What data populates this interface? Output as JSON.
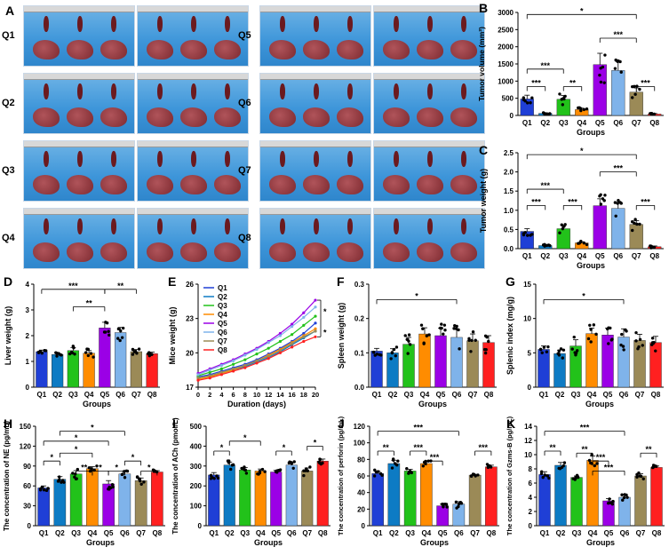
{
  "panel_a": {
    "letter": "A",
    "rows_left": [
      "Q1",
      "Q2",
      "Q3",
      "Q4"
    ],
    "rows_right": [
      "Q5",
      "Q6",
      "Q7",
      "Q8"
    ]
  },
  "colors": {
    "Q1": "#1f3fd6",
    "Q2": "#0d7bc4",
    "Q3": "#22c21a",
    "Q4": "#ff8c00",
    "Q5": "#9b00e6",
    "Q6": "#7fb3ea",
    "Q7": "#9b8a57",
    "Q8": "#ff2020"
  },
  "chart_data": [
    {
      "id": "B",
      "type": "bar",
      "title": "B",
      "categories": [
        "Q1",
        "Q2",
        "Q3",
        "Q4",
        "Q5",
        "Q6",
        "Q7",
        "Q8"
      ],
      "values": [
        480,
        60,
        470,
        170,
        1480,
        1310,
        680,
        40
      ],
      "errors": [
        110,
        20,
        110,
        40,
        330,
        260,
        120,
        15
      ],
      "ylabel": "Tumor volume (mm³)",
      "xlabel": "Groups",
      "ylim": [
        0,
        3000
      ],
      "yticks": [
        0,
        500,
        1000,
        1500,
        2000,
        2500,
        3000
      ],
      "annotations": [
        "*",
        "***",
        "***",
        "***",
        "**",
        "***"
      ]
    },
    {
      "id": "C",
      "type": "bar",
      "title": "C",
      "categories": [
        "Q1",
        "Q2",
        "Q3",
        "Q4",
        "Q5",
        "Q6",
        "Q7",
        "Q8"
      ],
      "values": [
        0.45,
        0.08,
        0.52,
        0.15,
        1.12,
        1.05,
        0.63,
        0.05
      ],
      "errors": [
        0.07,
        0.02,
        0.08,
        0.03,
        0.18,
        0.15,
        0.1,
        0.02
      ],
      "ylabel": "Tumor weight (g)",
      "xlabel": "Groups",
      "ylim": [
        0,
        2.5
      ],
      "yticks": [
        0.0,
        0.5,
        1.0,
        1.5,
        2.0,
        2.5
      ],
      "annotations": [
        "*",
        "***",
        "***",
        "***",
        "***",
        "***"
      ]
    },
    {
      "id": "D",
      "type": "bar",
      "title": "D",
      "categories": [
        "Q1",
        "Q2",
        "Q3",
        "Q4",
        "Q5",
        "Q6",
        "Q7",
        "Q8"
      ],
      "values": [
        1.38,
        1.27,
        1.42,
        1.32,
        2.3,
        2.12,
        1.38,
        1.3
      ],
      "errors": [
        0.06,
        0.05,
        0.12,
        0.1,
        0.22,
        0.2,
        0.08,
        0.06
      ],
      "ylabel": "Liver weight (g)",
      "xlabel": "Groups",
      "ylim": [
        0,
        4
      ],
      "yticks": [
        0,
        1,
        2,
        3,
        4
      ],
      "annotations": [
        "***",
        "**",
        "**"
      ]
    },
    {
      "id": "E",
      "type": "line",
      "title": "E",
      "x": [
        0,
        2,
        4,
        6,
        8,
        10,
        12,
        14,
        16,
        18,
        20
      ],
      "series": [
        {
          "name": "Q1",
          "values": [
            17.9,
            18.1,
            18.4,
            18.7,
            19.0,
            19.4,
            19.9,
            20.4,
            21.0,
            21.7,
            22.6
          ]
        },
        {
          "name": "Q2",
          "values": [
            17.8,
            18.0,
            18.2,
            18.5,
            18.8,
            19.2,
            19.6,
            20.1,
            20.7,
            21.3,
            21.9
          ]
        },
        {
          "name": "Q3",
          "values": [
            18.0,
            18.3,
            18.6,
            19.0,
            19.4,
            19.9,
            20.4,
            21.0,
            21.6,
            22.4,
            23.2
          ]
        },
        {
          "name": "Q4",
          "values": [
            17.7,
            17.9,
            18.2,
            18.5,
            18.9,
            19.3,
            19.8,
            20.3,
            20.9,
            21.5,
            22.1
          ]
        },
        {
          "name": "Q5",
          "values": [
            18.2,
            18.6,
            19.0,
            19.4,
            19.9,
            20.4,
            21.0,
            21.7,
            22.5,
            23.5,
            24.6
          ]
        },
        {
          "name": "Q6",
          "values": [
            18.1,
            18.5,
            18.9,
            19.3,
            19.8,
            20.3,
            20.9,
            21.5,
            22.3,
            23.1,
            24.0
          ]
        },
        {
          "name": "Q7",
          "values": [
            17.8,
            18.0,
            18.3,
            18.6,
            18.9,
            19.3,
            19.7,
            20.2,
            20.8,
            21.4,
            21.9
          ]
        },
        {
          "name": "Q8",
          "values": [
            17.6,
            17.8,
            18.1,
            18.4,
            18.7,
            19.1,
            19.5,
            20.0,
            20.5,
            21.0,
            21.4
          ]
        }
      ],
      "ylabel": "Mice weight (g)",
      "xlabel": "Duration (days)",
      "ylim": [
        17,
        26
      ],
      "yticks": [
        17,
        20,
        23,
        26
      ],
      "xticks": [
        0,
        2,
        4,
        6,
        8,
        10,
        12,
        14,
        16,
        18,
        20
      ],
      "annotations": [
        "*",
        "*"
      ]
    },
    {
      "id": "F",
      "type": "bar",
      "title": "F",
      "categories": [
        "Q1",
        "Q2",
        "Q3",
        "Q4",
        "Q5",
        "Q6",
        "Q7",
        "Q8"
      ],
      "values": [
        0.105,
        0.1,
        0.125,
        0.155,
        0.15,
        0.145,
        0.135,
        0.13
      ],
      "errors": [
        0.008,
        0.012,
        0.02,
        0.018,
        0.022,
        0.025,
        0.02,
        0.02
      ],
      "ylabel": "Spleen weight (g)",
      "xlabel": "Groups",
      "ylim": [
        0,
        0.3
      ],
      "yticks": [
        0.0,
        0.1,
        0.2,
        0.3
      ],
      "annotations": [
        "*"
      ]
    },
    {
      "id": "G",
      "type": "bar",
      "title": "G",
      "categories": [
        "Q1",
        "Q2",
        "Q3",
        "Q4",
        "Q5",
        "Q6",
        "Q7",
        "Q8"
      ],
      "values": [
        5.5,
        4.9,
        6.0,
        7.8,
        7.6,
        7.3,
        6.8,
        6.5
      ],
      "errors": [
        0.5,
        0.5,
        0.9,
        0.8,
        1.0,
        1.2,
        0.9,
        0.9
      ],
      "ylabel": "Splenic index (mg/g)",
      "xlabel": "Groups",
      "ylim": [
        0,
        15
      ],
      "yticks": [
        0,
        5,
        10,
        15
      ],
      "annotations": [
        "*"
      ]
    },
    {
      "id": "H",
      "type": "bar",
      "title": "H",
      "categories": [
        "Q1",
        "Q2",
        "Q3",
        "Q4",
        "Q5",
        "Q6",
        "Q7",
        "Q8"
      ],
      "values": [
        57,
        70,
        78,
        86,
        63,
        78,
        68,
        81
      ],
      "errors": [
        3,
        4,
        5,
        3,
        5,
        4,
        4,
        2
      ],
      "ylabel": "The concentration of NE (pg/mL)",
      "xlabel": "Groups",
      "ylim": [
        0,
        150
      ],
      "yticks": [
        0,
        30,
        60,
        90,
        120,
        150
      ],
      "annotations": [
        "*",
        "*",
        "*",
        "*",
        "**",
        "*",
        "*",
        "*",
        "*"
      ]
    },
    {
      "id": "I",
      "type": "bar",
      "title": "I",
      "categories": [
        "Q1",
        "Q2",
        "Q3",
        "Q4",
        "Q5",
        "Q6",
        "Q7",
        "Q8"
      ],
      "values": [
        255,
        305,
        280,
        275,
        270,
        305,
        275,
        325
      ],
      "errors": [
        12,
        15,
        12,
        10,
        8,
        12,
        15,
        10
      ],
      "ylabel": "The concentration of ACh (pmol/L)",
      "xlabel": "Groups",
      "ylim": [
        0,
        500
      ],
      "yticks": [
        0,
        100,
        200,
        300,
        400,
        500
      ],
      "annotations": [
        "*",
        "*",
        "*",
        "*"
      ]
    },
    {
      "id": "J",
      "type": "bar",
      "title": "J",
      "categories": [
        "Q1",
        "Q2",
        "Q3",
        "Q4",
        "Q5",
        "Q6",
        "Q7",
        "Q8"
      ],
      "values": [
        63,
        75,
        66,
        75,
        24,
        26,
        61,
        71
      ],
      "errors": [
        3,
        4,
        2,
        2,
        2,
        3,
        1,
        2
      ],
      "ylabel": "The concentration of perforin (pg/mL)",
      "xlabel": "Groups",
      "ylim": [
        0,
        120
      ],
      "yticks": [
        0,
        20,
        40,
        60,
        80,
        100,
        120
      ],
      "annotations": [
        "***",
        "**",
        "***",
        "***",
        "***"
      ]
    },
    {
      "id": "K",
      "type": "bar",
      "title": "K",
      "categories": [
        "Q1",
        "Q2",
        "Q3",
        "Q4",
        "Q5",
        "Q6",
        "Q7",
        "Q8"
      ],
      "values": [
        7.2,
        8.5,
        6.8,
        9.2,
        3.5,
        4.0,
        7.0,
        8.2
      ],
      "errors": [
        0.4,
        0.4,
        0.2,
        0.6,
        0.3,
        0.3,
        0.3,
        0.2
      ],
      "ylabel": "The concentration of Gzms-B (pg/mL)",
      "xlabel": "Groups",
      "ylim": [
        0,
        14
      ],
      "yticks": [
        0,
        2,
        4,
        6,
        8,
        10,
        12,
        14
      ],
      "annotations": [
        "***",
        "**",
        "**",
        "***",
        "***",
        "**"
      ]
    }
  ]
}
